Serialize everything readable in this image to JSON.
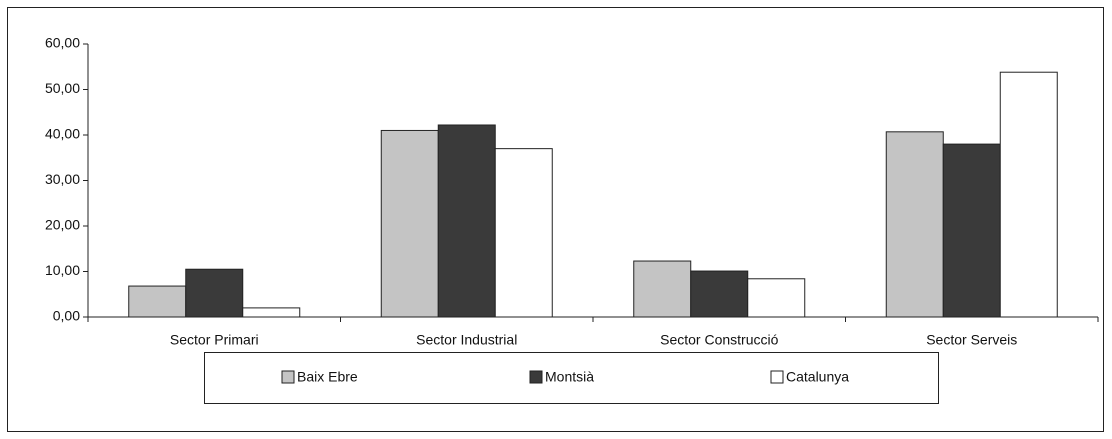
{
  "chart_data": {
    "type": "bar",
    "categories": [
      "Sector Primari",
      "Sector Industrial",
      "Sector Construcció",
      "Sector Serveis"
    ],
    "series": [
      {
        "name": "Baix Ebre",
        "color": "#c4c4c4",
        "values": [
          6.8,
          41.0,
          12.3,
          40.7
        ]
      },
      {
        "name": "Montsià",
        "color": "#3a3a3a",
        "values": [
          10.5,
          42.2,
          10.1,
          38.0
        ]
      },
      {
        "name": "Catalunya",
        "color": "#ffffff",
        "values": [
          2.0,
          37.0,
          8.4,
          53.8
        ]
      }
    ],
    "ylim": [
      0,
      60
    ],
    "yticks": [
      {
        "value": 0,
        "label": "0,00"
      },
      {
        "value": 10,
        "label": "10,00"
      },
      {
        "value": 20,
        "label": "20,00"
      },
      {
        "value": 30,
        "label": "30,00"
      },
      {
        "value": 40,
        "label": "40,00"
      },
      {
        "value": 50,
        "label": "50,00"
      },
      {
        "value": 60,
        "label": "60,00"
      }
    ],
    "legend": "bottom"
  }
}
